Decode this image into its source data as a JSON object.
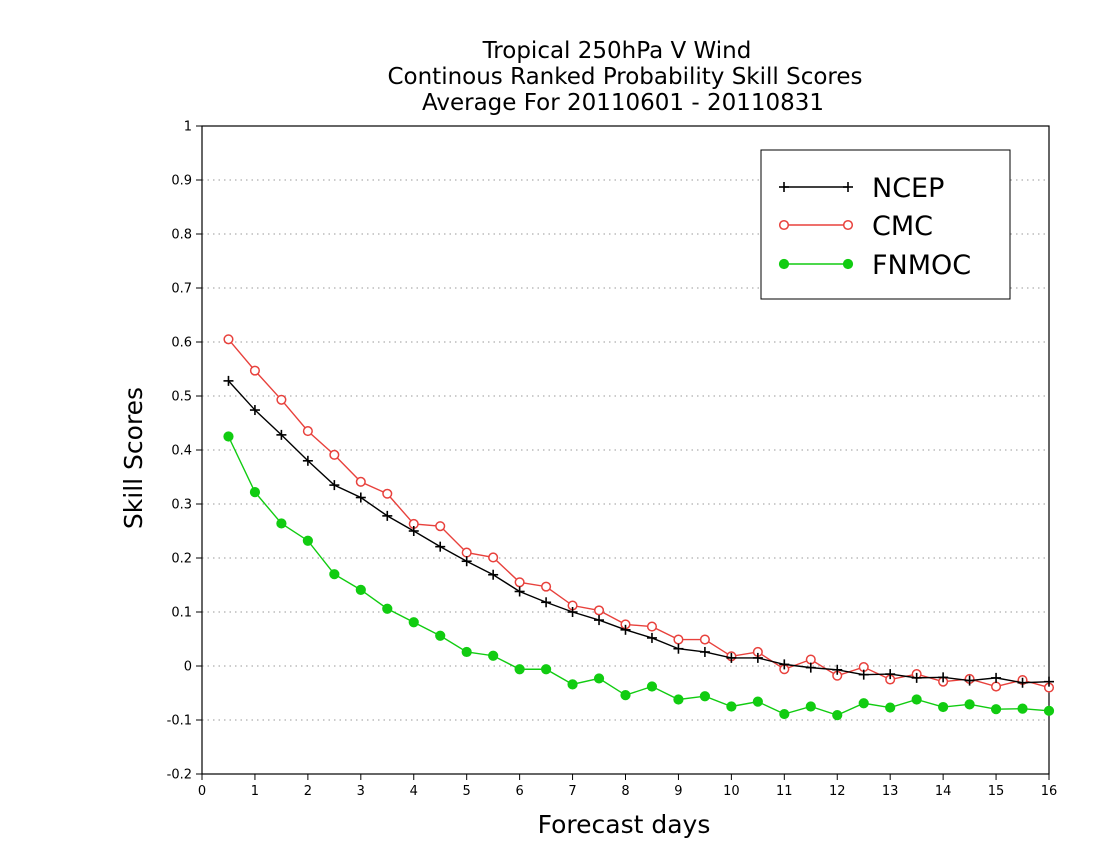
{
  "chart_data": {
    "type": "line",
    "title_lines": [
      "Tropical 250hPa V Wind",
      "Continous Ranked Probability Skill Scores",
      "Average For 20110601 - 20110831"
    ],
    "xlabel": "Forecast days",
    "ylabel": "Skill Scores",
    "xlim": [
      0,
      16
    ],
    "ylim": [
      -0.2,
      1
    ],
    "x_ticks": [
      0,
      1,
      2,
      3,
      4,
      5,
      6,
      7,
      8,
      9,
      10,
      11,
      12,
      13,
      14,
      15,
      16
    ],
    "x_tick_labels": [
      "0",
      "1",
      "2",
      "3",
      "4",
      "5",
      "6",
      "7",
      "8",
      "9",
      "10",
      "11",
      "12",
      "13",
      "14",
      "15",
      "16"
    ],
    "y_ticks": [
      -0.2,
      -0.1,
      0,
      0.1,
      0.2,
      0.3,
      0.4,
      0.5,
      0.6,
      0.7,
      0.8,
      0.9,
      1
    ],
    "y_tick_labels": [
      "-0.2",
      "-0.1",
      "0",
      "0.1",
      "0.2",
      "0.3",
      "0.4",
      "0.5",
      "0.6",
      "0.7",
      "0.8",
      "0.9",
      "1"
    ],
    "grid": "horizontal dotted",
    "legend_position": "top-right",
    "x": [
      0.5,
      1,
      1.5,
      2,
      2.5,
      3,
      3.5,
      4,
      4.5,
      5,
      5.5,
      6,
      6.5,
      7,
      7.5,
      8,
      8.5,
      9,
      9.5,
      10,
      10.5,
      11,
      11.5,
      12,
      12.5,
      13,
      13.5,
      14,
      14.5,
      15,
      15.5,
      16
    ],
    "series": [
      {
        "name": "NCEP",
        "color": "#000000",
        "marker": "plus",
        "values": [
          0.528,
          0.474,
          0.428,
          0.38,
          0.335,
          0.312,
          0.278,
          0.25,
          0.221,
          0.194,
          0.169,
          0.138,
          0.118,
          0.1,
          0.085,
          0.067,
          0.052,
          0.032,
          0.026,
          0.015,
          0.015,
          0.003,
          -0.003,
          -0.007,
          -0.016,
          -0.015,
          -0.022,
          -0.021,
          -0.027,
          -0.022,
          -0.031,
          -0.029
        ]
      },
      {
        "name": "CMC",
        "color": "#e8413c",
        "marker": "open-circle",
        "values": [
          0.605,
          0.547,
          0.493,
          0.435,
          0.391,
          0.341,
          0.319,
          0.263,
          0.259,
          0.21,
          0.201,
          0.155,
          0.147,
          0.112,
          0.103,
          0.077,
          0.073,
          0.049,
          0.049,
          0.018,
          0.026,
          -0.006,
          0.012,
          -0.018,
          -0.002,
          -0.025,
          -0.015,
          -0.029,
          -0.024,
          -0.038,
          -0.026,
          -0.04
        ]
      },
      {
        "name": "FNMOC",
        "color": "#11cc11",
        "marker": "filled-circle",
        "values": [
          0.425,
          0.322,
          0.264,
          0.232,
          0.17,
          0.141,
          0.106,
          0.081,
          0.056,
          0.026,
          0.019,
          -0.006,
          -0.006,
          -0.034,
          -0.023,
          -0.054,
          -0.038,
          -0.062,
          -0.056,
          -0.075,
          -0.066,
          -0.089,
          -0.075,
          -0.091,
          -0.069,
          -0.077,
          -0.062,
          -0.076,
          -0.071,
          -0.08,
          -0.079,
          -0.083
        ]
      }
    ]
  }
}
